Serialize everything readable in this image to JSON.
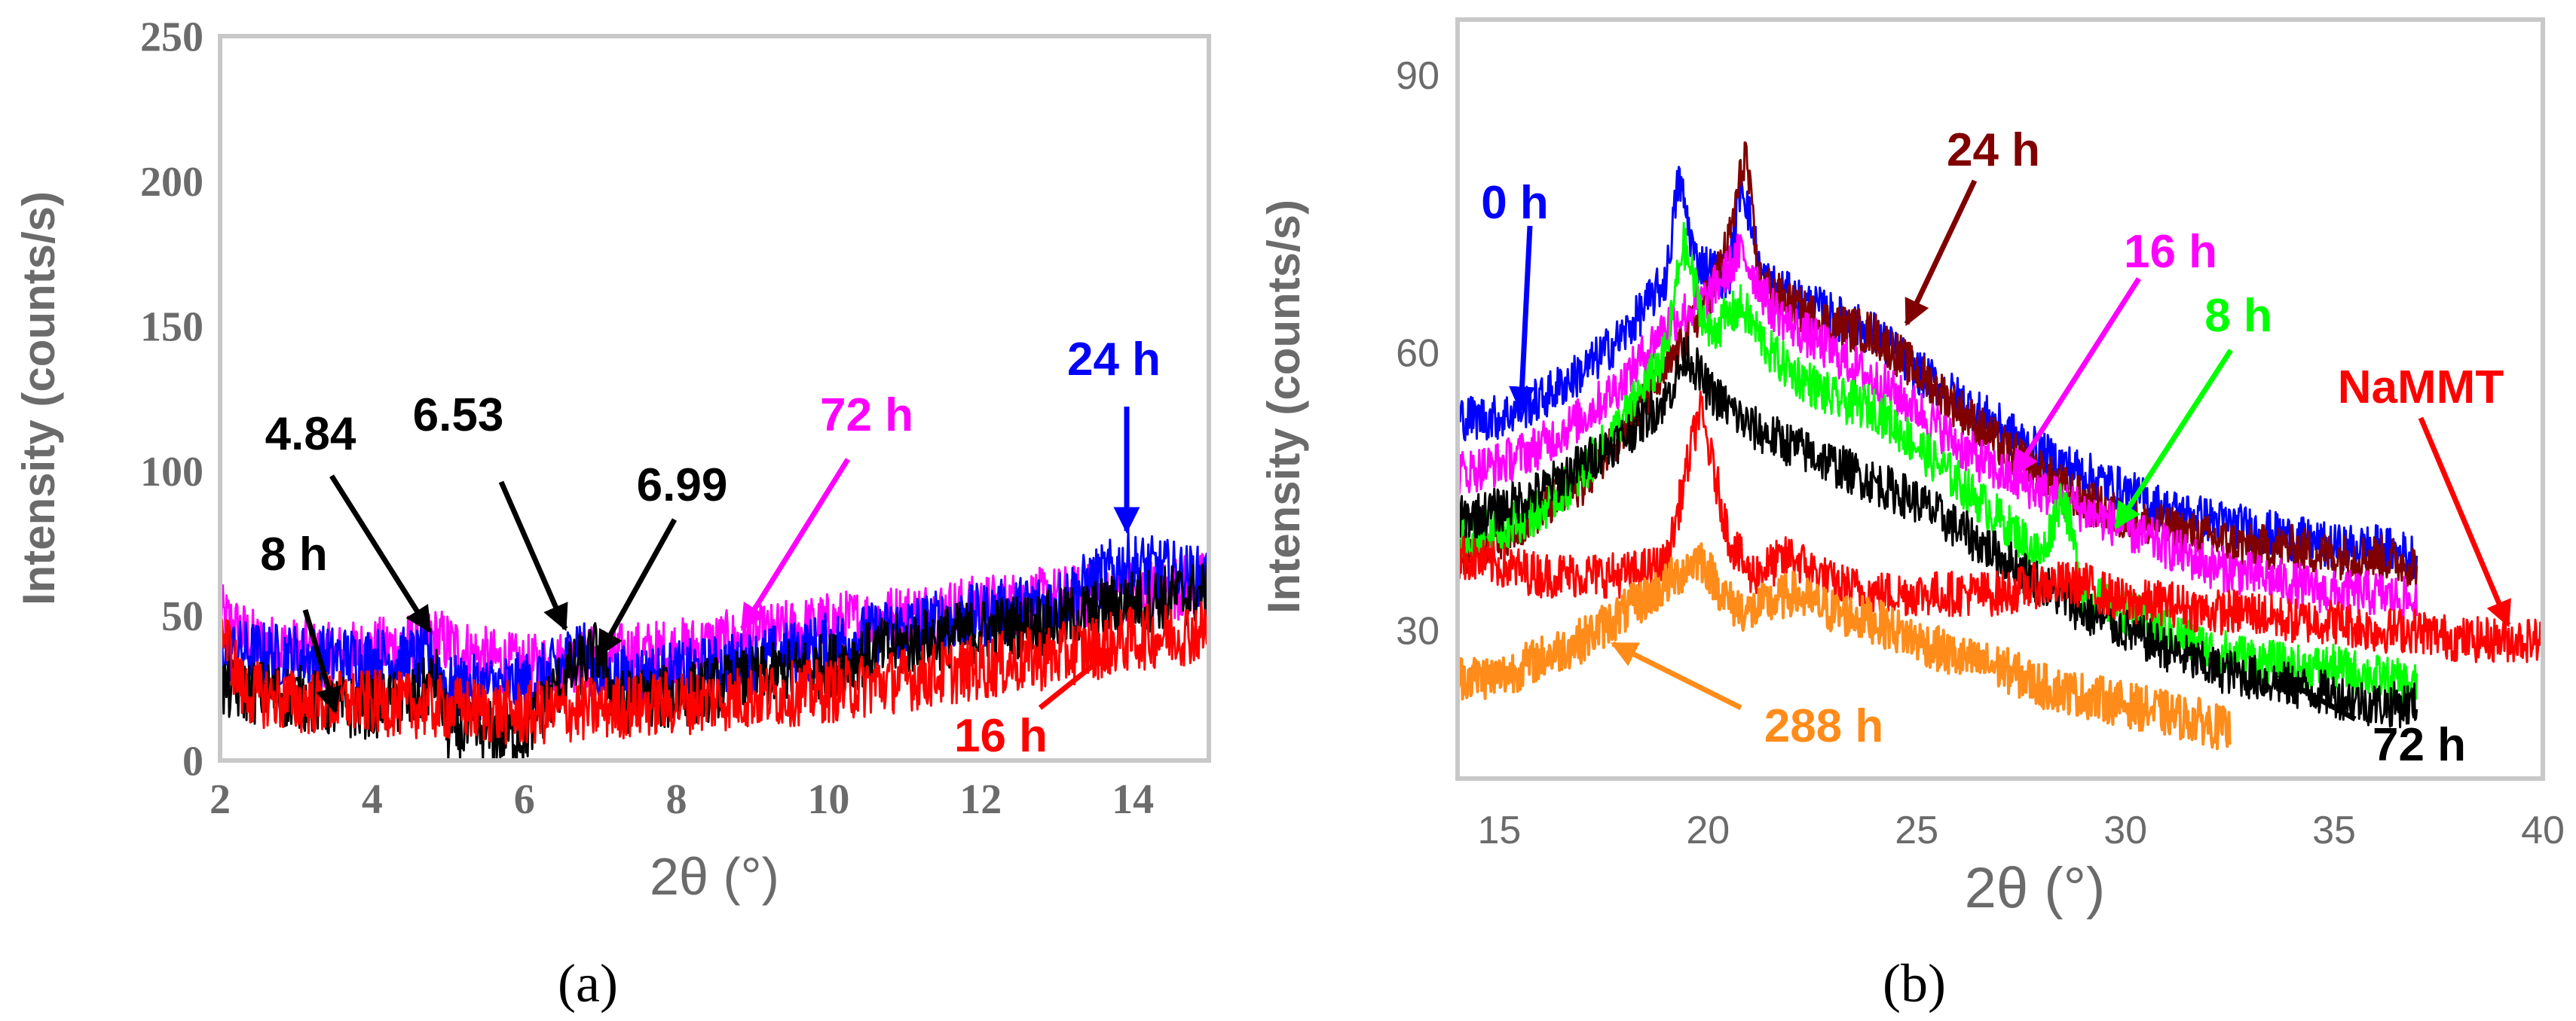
{
  "chart_data": [
    {
      "panel": "(a)",
      "type": "line",
      "xlabel": "2θ (°)",
      "ylabel": "Intensity (counts/s)",
      "xlim": [
        2,
        15
      ],
      "ylim": [
        0,
        250
      ],
      "xticks": [
        2,
        4,
        6,
        8,
        10,
        12,
        14
      ],
      "yticks": [
        0,
        50,
        100,
        150,
        200,
        250
      ],
      "grid": false,
      "series": [
        {
          "name": "72 h",
          "color": "#ff00ff",
          "x": [
            2,
            2.5,
            3.5,
            4.5,
            4.84,
            5.5,
            6,
            6.5,
            7,
            8,
            9,
            10,
            11,
            12,
            13,
            14,
            15
          ],
          "y": [
            50,
            40,
            36,
            40,
            42,
            35,
            32,
            34,
            36,
            38,
            42,
            47,
            50,
            53,
            56,
            58,
            61
          ]
        },
        {
          "name": "24 h",
          "color": "#0000ff",
          "x": [
            2,
            3,
            4,
            4.8,
            5,
            6,
            6.53,
            6.7,
            7,
            8,
            9,
            10,
            11,
            12,
            13,
            13.9,
            14.5,
            15
          ],
          "y": [
            38,
            36,
            35,
            35,
            25,
            26,
            33,
            42,
            28,
            30,
            34,
            40,
            46,
            50,
            55,
            68,
            65,
            62
          ]
        },
        {
          "name": "8 h",
          "color": "#000000",
          "x": [
            2,
            3,
            3.6,
            4.5,
            4.84,
            5,
            6,
            6.5,
            6.99,
            7.2,
            8,
            9,
            10,
            11,
            12,
            13,
            14,
            15
          ],
          "y": [
            25,
            22,
            18,
            20,
            28,
            10,
            9,
            28,
            38,
            20,
            22,
            28,
            33,
            40,
            45,
            48,
            55,
            58
          ]
        },
        {
          "name": "16 h",
          "color": "#ff0000",
          "x": [
            2,
            2.3,
            3,
            4,
            5,
            6,
            7,
            8,
            9,
            10,
            11,
            12,
            13,
            14,
            15
          ],
          "y": [
            48,
            24,
            20,
            20,
            18,
            16,
            18,
            20,
            22,
            24,
            28,
            32,
            36,
            42,
            45
          ]
        }
      ],
      "annotations": [
        {
          "text": "4.84",
          "color": "#000000"
        },
        {
          "text": "6.53",
          "color": "#000000"
        },
        {
          "text": "6.99",
          "color": "#000000"
        },
        {
          "text": "8 h",
          "color": "#000000"
        },
        {
          "text": "72 h",
          "color": "#ff00ff"
        },
        {
          "text": "24 h",
          "color": "#0000ff"
        },
        {
          "text": "16 h",
          "color": "#ff0000"
        }
      ]
    },
    {
      "panel": "(b)",
      "type": "line",
      "xlabel": "2θ (°)",
      "ylabel": "Intensity (counts/s)",
      "xlim": [
        14,
        40
      ],
      "ylim": [
        14,
        96
      ],
      "xticks": [
        15,
        20,
        25,
        30,
        35,
        40
      ],
      "yticks": [
        30,
        60,
        90
      ],
      "grid": false,
      "series": [
        {
          "name": "0 h",
          "color": "#0000ff",
          "x": [
            14,
            15,
            16,
            17,
            18,
            19,
            19.3,
            19.7,
            20.5,
            20.8,
            21.3,
            22,
            23,
            24,
            25,
            26,
            27,
            28,
            29,
            30,
            31,
            32,
            33,
            34,
            35,
            36,
            37
          ],
          "y": [
            53,
            53,
            55,
            58,
            62,
            68,
            79,
            70,
            68,
            79,
            68,
            66,
            64,
            62,
            58,
            55,
            52,
            49,
            47,
            45,
            43,
            42,
            41,
            40,
            39,
            39,
            38
          ]
        },
        {
          "name": "24 h",
          "color": "#800000",
          "x": [
            14,
            15,
            16,
            17,
            18,
            19,
            20,
            20.5,
            20.9,
            21.2,
            22,
            23,
            24,
            25,
            26,
            27,
            28,
            29,
            30,
            31,
            32,
            33,
            34,
            35,
            36,
            37
          ],
          "y": [
            38,
            40,
            43,
            46,
            52,
            58,
            66,
            72,
            82,
            68,
            65,
            63,
            62,
            58,
            54,
            50,
            47,
            44,
            42,
            41,
            40,
            39,
            39,
            38,
            38,
            37
          ]
        },
        {
          "name": "16 h",
          "color": "#ff00ff",
          "x": [
            14,
            15,
            16,
            17,
            18,
            19,
            20,
            20.8,
            21.5,
            22,
            23,
            24,
            25,
            26,
            27,
            28,
            29,
            30,
            31,
            32,
            33,
            34,
            35,
            36,
            37
          ],
          "y": [
            47,
            48,
            50,
            53,
            57,
            63,
            66,
            71,
            65,
            63,
            60,
            57,
            54,
            50,
            47,
            45,
            43,
            41,
            39,
            37,
            36,
            35,
            34,
            34,
            33
          ]
        },
        {
          "name": "8 h",
          "color": "#00ff00",
          "x": [
            14,
            15,
            16,
            17,
            18,
            19,
            19.4,
            20,
            20.8,
            21.5,
            22,
            23,
            24,
            25,
            26,
            27,
            28,
            28.5,
            29,
            30,
            31,
            32,
            33,
            34,
            35,
            36,
            37
          ],
          "y": [
            40,
            41,
            43,
            47,
            53,
            60,
            72,
            62,
            65,
            60,
            58,
            55,
            54,
            50,
            46,
            42,
            38,
            45,
            34,
            32,
            30,
            28,
            27,
            26,
            26,
            25,
            24
          ]
        },
        {
          "name": "72 h",
          "color": "#000000",
          "x": [
            14,
            15,
            16,
            17,
            18,
            19,
            19.5,
            20,
            20.5,
            21,
            22,
            23,
            24,
            25,
            26,
            27,
            28,
            29,
            30,
            31,
            32,
            33,
            34,
            35,
            36,
            37
          ],
          "y": [
            42,
            43,
            45,
            48,
            51,
            55,
            60,
            56,
            54,
            52,
            50,
            48,
            46,
            44,
            41,
            38,
            35,
            32,
            30,
            28,
            26,
            25,
            24,
            23,
            22,
            22
          ]
        },
        {
          "name": "NaMMT",
          "color": "#ff0000",
          "x": [
            14,
            15,
            16,
            17,
            18,
            19,
            19.8,
            20.5,
            21,
            22,
            23,
            24,
            25,
            26,
            27,
            28,
            29,
            30,
            31,
            32,
            33,
            34,
            35,
            36,
            37,
            38,
            39,
            40
          ],
          "y": [
            38,
            37,
            36,
            36,
            36,
            37,
            54,
            40,
            36,
            38,
            35,
            34,
            34,
            34,
            34,
            35,
            35,
            33,
            33,
            32,
            32,
            31,
            31,
            30,
            30,
            29,
            29,
            29
          ]
        },
        {
          "name": "288 h",
          "color": "#ff8c1a",
          "x": [
            14,
            15,
            16,
            17,
            18,
            19,
            19.8,
            20.5,
            21,
            22,
            23,
            24,
            25,
            26,
            27,
            28,
            29,
            30,
            31,
            32,
            32.5
          ],
          "y": [
            25,
            25,
            27,
            29,
            32,
            35,
            38,
            33,
            32,
            34,
            32,
            31,
            29,
            27,
            26,
            24,
            23,
            22,
            21,
            20,
            19
          ]
        }
      ],
      "annotations": [
        {
          "text": "0 h",
          "color": "#0000ff"
        },
        {
          "text": "24 h",
          "color": "#800000"
        },
        {
          "text": "16 h",
          "color": "#ff00ff"
        },
        {
          "text": "8 h",
          "color": "#00ff00"
        },
        {
          "text": "NaMMT",
          "color": "#ff0000"
        },
        {
          "text": "288 h",
          "color": "#ff8c1a"
        },
        {
          "text": "72 h",
          "color": "#000000"
        }
      ]
    }
  ]
}
